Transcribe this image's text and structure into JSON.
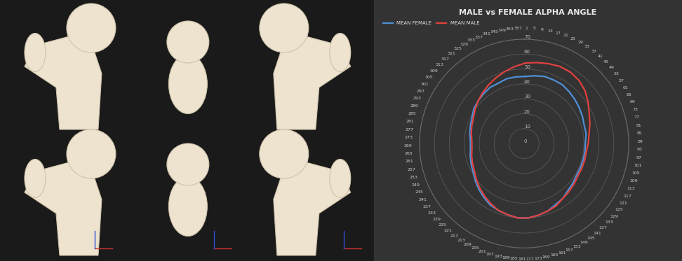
{
  "chart_data": {
    "type": "polar_line",
    "title": "MALE vs FEMALE ALPHA ANGLE",
    "x": [
      1,
      9,
      17,
      25,
      33,
      41,
      49,
      57,
      65,
      73,
      81,
      89,
      97,
      105,
      113,
      121,
      129,
      137,
      145,
      153,
      161,
      169,
      177,
      185,
      193,
      201,
      209,
      217,
      225,
      233,
      241,
      249,
      257,
      265,
      273,
      281,
      289,
      297,
      305,
      313,
      321,
      329,
      337,
      345,
      353
    ],
    "series": [
      {
        "name": "MEAN FEMALE",
        "color": "#4f8fd6",
        "values": [
          45,
          46,
          47,
          47,
          47,
          46,
          45,
          44,
          43,
          42,
          42,
          41,
          41,
          41,
          41,
          41,
          42,
          43,
          45,
          46,
          48,
          49,
          50,
          50,
          49,
          48,
          47,
          45,
          43,
          41,
          39,
          38,
          37,
          36,
          36,
          37,
          38,
          39,
          41,
          42,
          43,
          44,
          44,
          45,
          45
        ]
      },
      {
        "name": "MEAN MALE",
        "color": "#e0413e",
        "values": [
          54,
          55,
          56,
          57,
          57,
          56,
          54,
          51,
          48,
          46,
          44,
          43,
          42,
          42,
          42,
          42,
          43,
          44,
          45,
          47,
          48,
          49,
          50,
          50,
          49,
          48,
          46,
          44,
          42,
          40,
          38,
          37,
          36,
          35,
          35,
          36,
          37,
          38,
          40,
          42,
          44,
          46,
          48,
          50,
          52
        ]
      }
    ],
    "xlim": [
      0,
      360
    ],
    "xticks": [
      1,
      5,
      9,
      13,
      17,
      21,
      25,
      29,
      33,
      37,
      41,
      45,
      49,
      53,
      57,
      61,
      65,
      69,
      73,
      77,
      81,
      85,
      89,
      93,
      97,
      101,
      105,
      109,
      113,
      117,
      121,
      125,
      129,
      133,
      137,
      141,
      145,
      149,
      153,
      157,
      161,
      165,
      169,
      173,
      177,
      181,
      185,
      189,
      193,
      197,
      201,
      205,
      209,
      213,
      217,
      221,
      225,
      229,
      233,
      237,
      241,
      245,
      249,
      253,
      257,
      261,
      265,
      269,
      273,
      277,
      281,
      285,
      289,
      293,
      297,
      301,
      305,
      309,
      313,
      317,
      321,
      325,
      329,
      333,
      337,
      341,
      345,
      349,
      353,
      357
    ],
    "ylim": [
      0,
      70
    ],
    "yticks": [
      0,
      10,
      20,
      30,
      40,
      50,
      60,
      70
    ],
    "grid": true,
    "legend": "upper left"
  }
}
